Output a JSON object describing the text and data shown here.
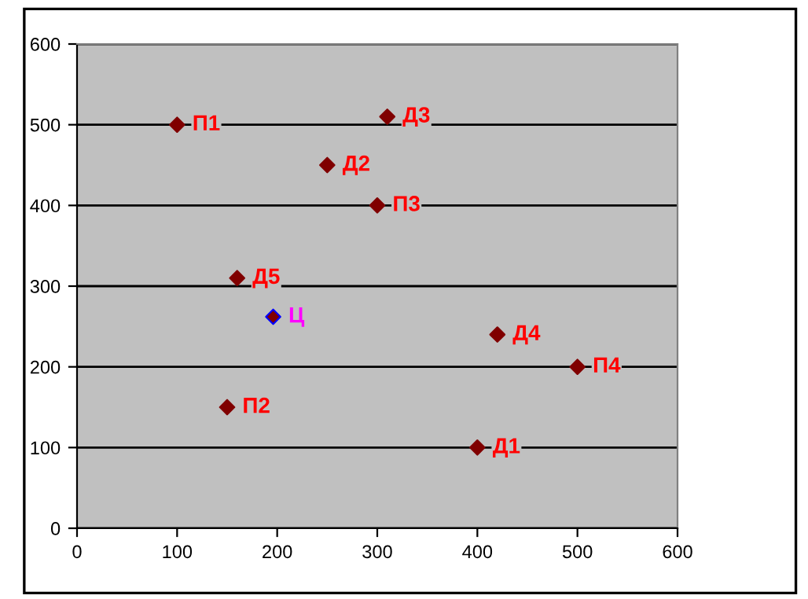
{
  "chart_data": {
    "type": "scatter",
    "marker": "diamond",
    "grid": "y",
    "legend": false,
    "xlim": [
      0,
      600
    ],
    "ylim": [
      0,
      600
    ],
    "xticks": [
      0,
      100,
      200,
      300,
      400,
      500,
      600
    ],
    "yticks": [
      0,
      100,
      200,
      300,
      400,
      500,
      600
    ],
    "series": [
      {
        "color": "#800000",
        "x": [
          100,
          150,
          300,
          500,
          400,
          250,
          310,
          420,
          160
        ],
        "values": [
          500,
          150,
          400,
          200,
          100,
          450,
          510,
          240,
          310
        ],
        "value_labels": [
          "П1",
          "П2",
          "П3",
          "П4",
          "Д1",
          "Д2",
          "Д3",
          "Д4",
          "Д5"
        ]
      },
      {
        "color": "#0000ff",
        "x": [
          196
        ],
        "values": [
          262
        ],
        "value_labels": [
          "Ц"
        ]
      }
    ]
  }
}
